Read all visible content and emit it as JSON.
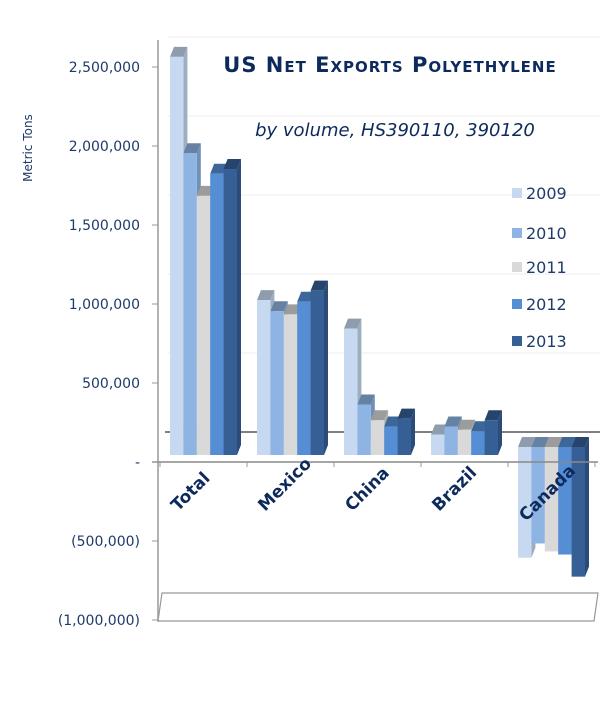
{
  "chart_data": {
    "type": "bar",
    "style": "3d-clustered-column",
    "title": "US Net Exports Polyethylene",
    "subtitle": "by volume, HS390110, 390120",
    "xlabel": "",
    "ylabel": "Metric Tons",
    "ylim": [
      -1000000,
      2500000
    ],
    "yticks": [
      2500000,
      2000000,
      1500000,
      1000000,
      500000,
      0,
      -500000,
      -1000000
    ],
    "ytick_labels": [
      "2,500,000",
      "2,000,000",
      "1,500,000",
      "1,000,000",
      "500,000",
      "-",
      "(500,000)",
      "(1,000,000)"
    ],
    "categories": [
      "Total",
      "Mexico",
      "China",
      "Brazil",
      "Canada"
    ],
    "legend_position": "right",
    "grid": true,
    "series": [
      {
        "name": "2009",
        "color": "#c6d9f1",
        "values": [
          2520000,
          980000,
          800000,
          130000,
          -650000
        ]
      },
      {
        "name": "2010",
        "color": "#8db4e2",
        "values": [
          1910000,
          910000,
          320000,
          180000,
          -560000
        ]
      },
      {
        "name": "2011",
        "color": "#d9d9d9",
        "values": [
          1640000,
          890000,
          220000,
          160000,
          -610000
        ]
      },
      {
        "name": "2012",
        "color": "#558ed5",
        "values": [
          1780000,
          970000,
          180000,
          150000,
          -630000
        ]
      },
      {
        "name": "2013",
        "color": "#365f96",
        "values": [
          1810000,
          1040000,
          230000,
          220000,
          -770000
        ]
      }
    ]
  }
}
